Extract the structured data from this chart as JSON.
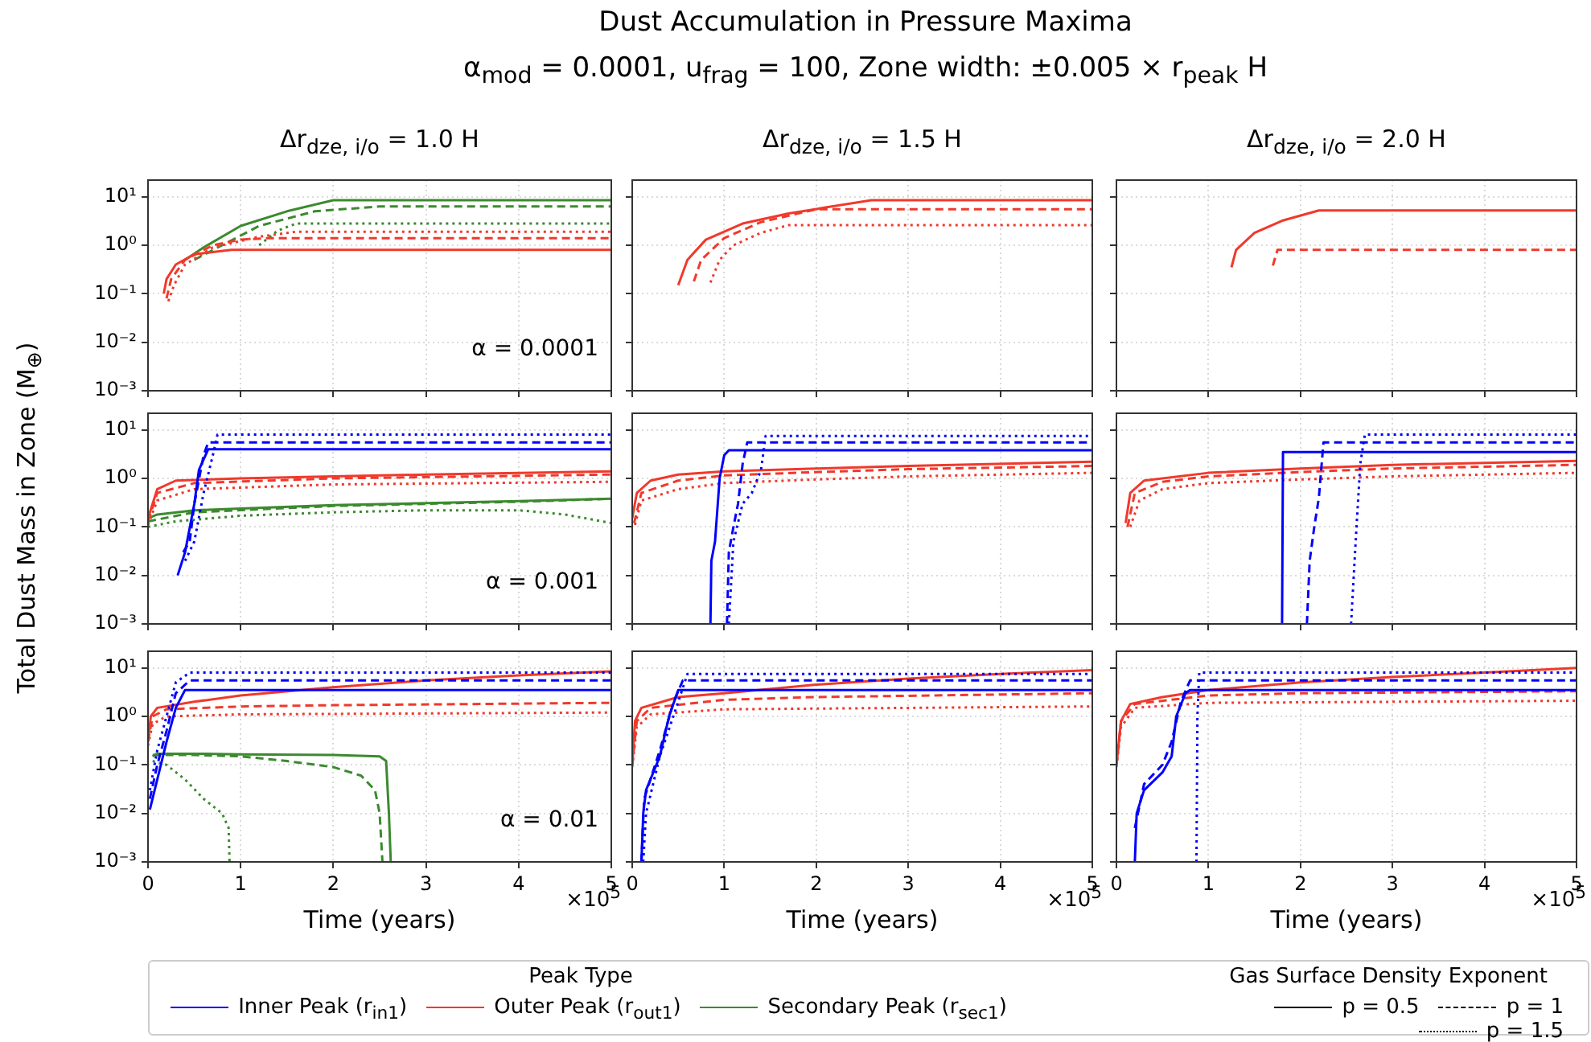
{
  "chart_data": [
    {
      "type": "line",
      "title": "Δr$_{dze, i/o}$ = 1.0 H",
      "annotations": [
        "Dust Accumulation in Pressure Maxima",
        "α$_{mod}$ = 0.0001, u$_{frag}$ = 100, Zone width: ±0.005 × r$_{peak}$ H",
        "α = 0.0001"
      ],
      "log": "y",
      "grid": true,
      "tick_labels": "y",
      "xlim": [
        0,
        5
      ],
      "xticks": [
        0,
        1,
        2,
        3,
        4,
        5
      ],
      "ylim": [
        0.001,
        22
      ],
      "yticks": [
        {
          "value": 0.001,
          "label": "10⁻³"
        },
        {
          "value": 0.01,
          "label": "10⁻²"
        },
        {
          "value": 0.1,
          "label": "10⁻¹"
        },
        {
          "value": 1,
          "label": "10⁰"
        },
        {
          "value": 10,
          "label": "10¹"
        }
      ],
      "series": [
        {
          "color": "#f0392b",
          "line_style": "solid",
          "x": [
            0.17,
            0.2,
            0.3,
            0.5,
            0.9,
            5
          ],
          "values": [
            0.1,
            0.2,
            0.4,
            0.65,
            0.8,
            0.8
          ]
        },
        {
          "color": "#f0392b",
          "line_style": "dashed",
          "x": [
            0.2,
            0.25,
            0.4,
            0.7,
            1.0,
            1.3,
            5
          ],
          "values": [
            0.08,
            0.2,
            0.5,
            1.0,
            1.3,
            1.4,
            1.4
          ]
        },
        {
          "color": "#f0392b",
          "line_style": "dotted",
          "x": [
            0.22,
            0.28,
            0.4,
            0.7,
            1.2,
            1.6,
            5
          ],
          "values": [
            0.07,
            0.15,
            0.4,
            0.9,
            1.5,
            1.9,
            1.9
          ]
        },
        {
          "color": "#3b8a2e",
          "line_style": "solid",
          "x": [
            0.4,
            0.6,
            1.0,
            1.5,
            2.0,
            5
          ],
          "values": [
            0.5,
            0.9,
            2.5,
            5,
            8.5,
            8.5
          ]
        },
        {
          "color": "#3b8a2e",
          "line_style": "dashed",
          "x": [
            0.5,
            0.8,
            1.2,
            1.8,
            2.5,
            5
          ],
          "values": [
            0.5,
            1.0,
            2.5,
            5,
            6.3,
            6.3
          ]
        },
        {
          "color": "#3b8a2e",
          "line_style": "dotted",
          "x": [
            1.2,
            1.4,
            1.6,
            5
          ],
          "values": [
            1.0,
            2.0,
            2.8,
            2.8
          ]
        }
      ]
    },
    {
      "type": "line",
      "title": "Δr$_{dze, i/o}$ = 1.5 H",
      "log": "y",
      "grid": true,
      "tick_labels": false,
      "xlim": [
        0,
        5
      ],
      "xticks": [
        0,
        1,
        2,
        3,
        4,
        5
      ],
      "ylim": [
        0.001,
        22
      ],
      "yticks": [
        0.001,
        0.01,
        0.1,
        1,
        10
      ],
      "series": [
        {
          "color": "#f0392b",
          "line_style": "solid",
          "x": [
            0.5,
            0.6,
            0.8,
            1.2,
            1.7,
            2.1,
            2.6,
            5
          ],
          "values": [
            0.15,
            0.5,
            1.3,
            2.8,
            4.5,
            6,
            8.5,
            8.5
          ]
        },
        {
          "color": "#f0392b",
          "line_style": "dashed",
          "x": [
            0.67,
            0.75,
            1.0,
            1.4,
            2.0,
            5
          ],
          "values": [
            0.18,
            0.5,
            1.4,
            3,
            5.5,
            5.5
          ]
        },
        {
          "color": "#f0392b",
          "line_style": "dotted",
          "x": [
            0.85,
            0.95,
            1.1,
            1.4,
            1.7,
            5
          ],
          "values": [
            0.17,
            0.5,
            1.0,
            1.8,
            2.6,
            2.6
          ]
        }
      ]
    },
    {
      "type": "line",
      "title": "Δr$_{dze, i/o}$ = 2.0 H",
      "log": "y",
      "grid": true,
      "tick_labels": false,
      "xlim": [
        0,
        5
      ],
      "xticks": [
        0,
        1,
        2,
        3,
        4,
        5
      ],
      "ylim": [
        0.001,
        22
      ],
      "yticks": [
        0.001,
        0.01,
        0.1,
        1,
        10
      ],
      "series": [
        {
          "color": "#f0392b",
          "line_style": "solid",
          "x": [
            1.25,
            1.3,
            1.5,
            1.8,
            2.2,
            5
          ],
          "values": [
            0.35,
            0.8,
            1.8,
            3.2,
            5.2,
            5.2
          ]
        },
        {
          "color": "#f0392b",
          "line_style": "dashed",
          "x": [
            1.7,
            1.75,
            5
          ],
          "values": [
            0.38,
            0.8,
            0.8
          ]
        }
      ]
    },
    {
      "type": "line",
      "ylabel": "Total Dust Mass in Zone (M$_{⊕}$)",
      "annotations": [
        "α = 0.001"
      ],
      "log": "y",
      "grid": true,
      "tick_labels": "y",
      "xlim": [
        0,
        5
      ],
      "xticks": [
        0,
        1,
        2,
        3,
        4,
        5
      ],
      "ylim": [
        0.001,
        22
      ],
      "yticks": [
        {
          "value": 0.001,
          "label": "10⁻³"
        },
        {
          "value": 0.01,
          "label": "10⁻²"
        },
        {
          "value": 0.1,
          "label": "10⁻¹"
        },
        {
          "value": 1,
          "label": "10⁰"
        },
        {
          "value": 10,
          "label": "10¹"
        }
      ],
      "series": [
        {
          "color": "#0000ff",
          "line_style": "solid",
          "x": [
            0.32,
            0.4,
            0.5,
            0.55,
            0.65,
            5
          ],
          "values": [
            0.01,
            0.03,
            0.3,
            1.5,
            4,
            4
          ]
        },
        {
          "color": "#0000ff",
          "line_style": "dashed",
          "x": [
            0.38,
            0.45,
            0.5,
            0.6,
            0.65,
            5
          ],
          "values": [
            0.03,
            0.05,
            0.3,
            3,
            5.5,
            5.5
          ]
        },
        {
          "color": "#0000ff",
          "line_style": "dotted",
          "x": [
            0.4,
            0.5,
            0.6,
            0.7,
            0.75,
            5
          ],
          "values": [
            0.02,
            0.05,
            0.5,
            3,
            8,
            8
          ]
        },
        {
          "color": "#f0392b",
          "line_style": "solid",
          "x": [
            0,
            0.05,
            0.1,
            0.3,
            1,
            2,
            3,
            5
          ],
          "values": [
            0.15,
            0.3,
            0.6,
            0.9,
            1.0,
            1.1,
            1.2,
            1.4
          ]
        },
        {
          "color": "#f0392b",
          "line_style": "dashed",
          "x": [
            0,
            0.1,
            0.5,
            2,
            5
          ],
          "values": [
            0.13,
            0.5,
            0.8,
            1.0,
            1.2
          ]
        },
        {
          "color": "#f0392b",
          "line_style": "dotted",
          "x": [
            0,
            0.1,
            0.5,
            2,
            5
          ],
          "values": [
            0.11,
            0.35,
            0.6,
            0.75,
            0.85
          ]
        },
        {
          "color": "#3b8a2e",
          "line_style": "solid",
          "x": [
            0,
            0.1,
            0.5,
            1,
            2,
            3,
            4,
            5
          ],
          "values": [
            0.15,
            0.18,
            0.22,
            0.24,
            0.28,
            0.31,
            0.34,
            0.38
          ]
        },
        {
          "color": "#3b8a2e",
          "line_style": "dashed",
          "x": [
            0,
            0.5,
            2,
            4,
            5
          ],
          "values": [
            0.13,
            0.2,
            0.27,
            0.33,
            0.38
          ]
        },
        {
          "color": "#3b8a2e",
          "line_style": "dotted",
          "x": [
            0,
            0.3,
            1,
            2,
            3,
            4,
            4.5,
            5
          ],
          "values": [
            0.1,
            0.13,
            0.17,
            0.2,
            0.22,
            0.22,
            0.18,
            0.12
          ]
        }
      ]
    },
    {
      "type": "line",
      "log": "y",
      "grid": true,
      "tick_labels": false,
      "xlim": [
        0,
        5
      ],
      "xticks": [
        0,
        1,
        2,
        3,
        4,
        5
      ],
      "ylim": [
        0.001,
        22
      ],
      "yticks": [
        0.001,
        0.01,
        0.1,
        1,
        10
      ],
      "series": [
        {
          "color": "#0000ff",
          "line_style": "solid",
          "x": [
            0.85,
            0.86,
            0.9,
            0.95,
            1.0,
            1.05,
            5
          ],
          "values": [
            0.001,
            0.02,
            0.05,
            1,
            3,
            3.8,
            3.8
          ]
        },
        {
          "color": "#0000ff",
          "line_style": "dashed",
          "x": [
            1.03,
            1.05,
            1.1,
            1.15,
            1.2,
            1.25,
            5
          ],
          "values": [
            0.001,
            0.03,
            0.1,
            0.3,
            2,
            5.5,
            5.5
          ]
        },
        {
          "color": "#0000ff",
          "line_style": "dotted",
          "x": [
            1.05,
            1.1,
            1.2,
            1.3,
            1.4,
            1.45,
            5
          ],
          "values": [
            0.001,
            0.05,
            0.3,
            0.5,
            1.5,
            7.5,
            7.5
          ]
        },
        {
          "color": "#f0392b",
          "line_style": "solid",
          "x": [
            0,
            0.05,
            0.2,
            0.5,
            1,
            2,
            3,
            5
          ],
          "values": [
            0.15,
            0.5,
            0.9,
            1.2,
            1.4,
            1.6,
            1.8,
            2.2
          ]
        },
        {
          "color": "#f0392b",
          "line_style": "dashed",
          "x": [
            0.02,
            0.1,
            0.5,
            1,
            2,
            3,
            5
          ],
          "values": [
            0.12,
            0.5,
            0.9,
            1.15,
            1.35,
            1.55,
            1.8
          ]
        },
        {
          "color": "#f0392b",
          "line_style": "dotted",
          "x": [
            0.03,
            0.1,
            0.5,
            1,
            2,
            3,
            5
          ],
          "values": [
            0.11,
            0.35,
            0.6,
            0.8,
            0.95,
            1.1,
            1.3
          ]
        }
      ]
    },
    {
      "type": "line",
      "log": "y",
      "grid": true,
      "tick_labels": false,
      "xlim": [
        0,
        5
      ],
      "xticks": [
        0,
        1,
        2,
        3,
        4,
        5
      ],
      "ylim": [
        0.001,
        22
      ],
      "yticks": [
        0.001,
        0.01,
        0.1,
        1,
        10
      ],
      "series": [
        {
          "color": "#0000ff",
          "line_style": "solid",
          "x": [
            1.8,
            1.81,
            5
          ],
          "values": [
            0.001,
            3.5,
            3.5
          ]
        },
        {
          "color": "#0000ff",
          "line_style": "dashed",
          "x": [
            2.07,
            2.1,
            2.15,
            2.2,
            2.25,
            5
          ],
          "values": [
            0.001,
            0.02,
            0.1,
            0.4,
            5.5,
            5.5
          ]
        },
        {
          "color": "#0000ff",
          "line_style": "dotted",
          "x": [
            2.55,
            2.6,
            2.65,
            2.7,
            5
          ],
          "values": [
            0.001,
            0.05,
            2,
            8,
            8
          ]
        },
        {
          "color": "#f0392b",
          "line_style": "solid",
          "x": [
            0.1,
            0.15,
            0.3,
            1,
            2,
            3,
            5
          ],
          "values": [
            0.12,
            0.5,
            0.9,
            1.3,
            1.6,
            1.9,
            2.3
          ]
        },
        {
          "color": "#f0392b",
          "line_style": "dashed",
          "x": [
            0.12,
            0.2,
            0.5,
            1,
            2,
            3,
            5
          ],
          "values": [
            0.1,
            0.5,
            0.85,
            1.1,
            1.35,
            1.6,
            1.9
          ]
        },
        {
          "color": "#f0392b",
          "line_style": "dotted",
          "x": [
            0.15,
            0.25,
            0.5,
            1,
            2,
            3,
            5
          ],
          "values": [
            0.1,
            0.35,
            0.6,
            0.8,
            0.95,
            1.1,
            1.3
          ]
        }
      ]
    },
    {
      "type": "line",
      "xlabel": "Time (years)",
      "annotations": [
        "α = 0.01",
        "×10$^{5}$"
      ],
      "log": "y",
      "grid": true,
      "xlim": [
        0,
        5
      ],
      "xticks": [
        0,
        1,
        2,
        3,
        4,
        5
      ],
      "ylim": [
        0.001,
        22
      ],
      "yticks": [
        {
          "value": 0.001,
          "label": "10⁻³"
        },
        {
          "value": 0.01,
          "label": "10⁻²"
        },
        {
          "value": 0.1,
          "label": "10⁻¹"
        },
        {
          "value": 1,
          "label": "10⁰"
        },
        {
          "value": 10,
          "label": "10¹"
        }
      ],
      "series": [
        {
          "color": "#0000ff",
          "line_style": "solid",
          "x": [
            0.02,
            0.1,
            0.2,
            0.3,
            0.4,
            5
          ],
          "values": [
            0.012,
            0.05,
            0.3,
            1.5,
            3.5,
            3.5
          ]
        },
        {
          "color": "#0000ff",
          "line_style": "dashed",
          "x": [
            0.02,
            0.1,
            0.2,
            0.3,
            0.45,
            5
          ],
          "values": [
            0.02,
            0.1,
            0.5,
            3,
            5.5,
            5.5
          ]
        },
        {
          "color": "#0000ff",
          "line_style": "dotted",
          "x": [
            0.02,
            0.1,
            0.2,
            0.3,
            0.45,
            5
          ],
          "values": [
            0.03,
            0.2,
            1,
            5,
            8,
            8
          ]
        },
        {
          "color": "#f0392b",
          "line_style": "solid",
          "x": [
            0,
            0.03,
            0.1,
            0.5,
            1,
            2,
            3,
            4,
            5
          ],
          "values": [
            0.3,
            1.0,
            1.5,
            2,
            2.7,
            4,
            5.5,
            7,
            8.5
          ]
        },
        {
          "color": "#f0392b",
          "line_style": "dashed",
          "x": [
            0,
            0.05,
            0.2,
            1,
            2,
            5
          ],
          "values": [
            0.3,
            1.0,
            1.4,
            1.6,
            1.7,
            1.9
          ]
        },
        {
          "color": "#f0392b",
          "line_style": "dotted",
          "x": [
            0,
            0.05,
            0.2,
            1,
            5
          ],
          "values": [
            0.25,
            0.7,
            1.0,
            1.1,
            1.2
          ]
        },
        {
          "color": "#3b8a2e",
          "line_style": "solid",
          "x": [
            0.05,
            0.1,
            0.5,
            1,
            2,
            2.5,
            2.57,
            2.6,
            2.62
          ],
          "values": [
            0.15,
            0.17,
            0.17,
            0.165,
            0.16,
            0.15,
            0.12,
            0.01,
            0.001
          ]
        },
        {
          "color": "#3b8a2e",
          "line_style": "dashed",
          "x": [
            0.05,
            0.5,
            1,
            1.5,
            2,
            2.3,
            2.45,
            2.5,
            2.53
          ],
          "values": [
            0.16,
            0.16,
            0.15,
            0.12,
            0.09,
            0.06,
            0.03,
            0.01,
            0.001
          ]
        },
        {
          "color": "#3b8a2e",
          "line_style": "dotted",
          "x": [
            0.05,
            0.2,
            0.4,
            0.6,
            0.8,
            0.87,
            0.88
          ],
          "values": [
            0.12,
            0.1,
            0.05,
            0.02,
            0.01,
            0.005,
            0.001
          ]
        }
      ]
    },
    {
      "type": "line",
      "xlabel": "Time (years)",
      "annotations": [
        "×10$^{5}$"
      ],
      "legend": "bottom left",
      "legend_title": "Peak Type",
      "log": "y",
      "grid": true,
      "tick_labels": "x",
      "xlim": [
        0,
        5
      ],
      "xticks": [
        0,
        1,
        2,
        3,
        4,
        5
      ],
      "ylim": [
        0.001,
        22
      ],
      "yticks": [
        0.001,
        0.01,
        0.1,
        1,
        10
      ],
      "series": [
        {
          "color": "#0000ff",
          "line_style": "solid",
          "x": [
            0.1,
            0.12,
            0.15,
            0.3,
            0.4,
            0.5,
            5
          ],
          "values": [
            0.001,
            0.01,
            0.03,
            0.15,
            1,
            3.5,
            3.5
          ]
        },
        {
          "color": "#0000ff",
          "line_style": "dashed",
          "x": [
            0.1,
            0.13,
            0.3,
            0.45,
            0.55,
            5
          ],
          "values": [
            0.001,
            0.02,
            0.2,
            2,
            5.5,
            5.5
          ]
        },
        {
          "color": "#0000ff",
          "line_style": "dotted",
          "x": [
            0.12,
            0.15,
            0.3,
            0.5,
            0.6,
            5
          ],
          "values": [
            0.001,
            0.01,
            0.15,
            2,
            7.5,
            7.5
          ]
        },
        {
          "color": "#f0392b",
          "line_style": "solid",
          "x": [
            0,
            0.03,
            0.1,
            0.5,
            1,
            2,
            3,
            4,
            5
          ],
          "values": [
            0.1,
            0.8,
            1.5,
            2.5,
            3,
            4.5,
            6,
            7.5,
            9
          ]
        },
        {
          "color": "#f0392b",
          "line_style": "dashed",
          "x": [
            0,
            0.05,
            0.2,
            1,
            2,
            5
          ],
          "values": [
            0.1,
            0.8,
            1.5,
            2.2,
            2.5,
            3
          ]
        },
        {
          "color": "#f0392b",
          "line_style": "dotted",
          "x": [
            0,
            0.05,
            0.2,
            1,
            5
          ],
          "values": [
            0.09,
            0.6,
            1.1,
            1.4,
            1.6
          ]
        },
        {
          "name": "Inner Peak (r$_{in1}$)",
          "color": "#0000ff",
          "line_style": "solid",
          "values": [
            null
          ]
        },
        {
          "name": "Outer Peak (r$_{out1}$)",
          "color": "#f0392b",
          "line_style": "solid",
          "values": [
            null
          ]
        },
        {
          "name": "Secondary Peak (r$_{sec1}$)",
          "color": "#3b8a2e",
          "line_style": "solid",
          "values": [
            null
          ]
        }
      ]
    },
    {
      "type": "line",
      "xlabel": "Time (years)",
      "annotations": [
        "×10$^{5}$"
      ],
      "legend": "bottom right",
      "legend_title": "Gas Surface Density Exponent",
      "log": "y",
      "grid": true,
      "tick_labels": "x",
      "xlim": [
        0,
        5
      ],
      "xticks": [
        0,
        1,
        2,
        3,
        4,
        5
      ],
      "ylim": [
        0.001,
        22
      ],
      "yticks": [
        0.001,
        0.01,
        0.1,
        1,
        10
      ],
      "series": [
        {
          "color": "#0000ff",
          "line_style": "solid",
          "x": [
            0.2,
            0.22,
            0.3,
            0.5,
            0.6,
            0.65,
            0.75,
            0.8,
            5
          ],
          "values": [
            0.001,
            0.01,
            0.03,
            0.07,
            0.15,
            1,
            3,
            3.5,
            3.5
          ]
        },
        {
          "color": "#0000ff",
          "line_style": "dashed",
          "x": [
            0.2,
            0.3,
            0.5,
            0.6,
            0.7,
            0.8,
            5
          ],
          "values": [
            0.005,
            0.04,
            0.1,
            0.3,
            2,
            5.5,
            5.5
          ]
        },
        {
          "color": "#0000ff",
          "line_style": "dotted",
          "x": [
            0.87,
            0.88,
            0.9,
            5
          ],
          "values": [
            0.001,
            1,
            8,
            8
          ]
        },
        {
          "color": "#f0392b",
          "line_style": "solid",
          "x": [
            0,
            0.05,
            0.15,
            0.5,
            1,
            2,
            3,
            4,
            5
          ],
          "values": [
            0.1,
            0.8,
            1.8,
            2.5,
            3.5,
            5,
            6.5,
            8,
            10
          ]
        },
        {
          "color": "#f0392b",
          "line_style": "dashed",
          "x": [
            0,
            0.05,
            0.2,
            1,
            2,
            5
          ],
          "values": [
            0.1,
            0.8,
            1.8,
            2.7,
            3,
            3.3
          ]
        },
        {
          "color": "#f0392b",
          "line_style": "dotted",
          "x": [
            0,
            0.05,
            0.2,
            1,
            5
          ],
          "values": [
            0.09,
            0.6,
            1.5,
            1.9,
            2.1
          ]
        },
        {
          "name": "p = 0.5",
          "color": "#000000",
          "line_style": "solid",
          "values": [
            null
          ]
        },
        {
          "name": "p = 1",
          "color": "#000000",
          "line_style": "dashed",
          "values": [
            null
          ]
        },
        {
          "name": "p = 1.5",
          "color": "#000000",
          "line_style": "dotted",
          "values": [
            null
          ]
        }
      ]
    }
  ]
}
